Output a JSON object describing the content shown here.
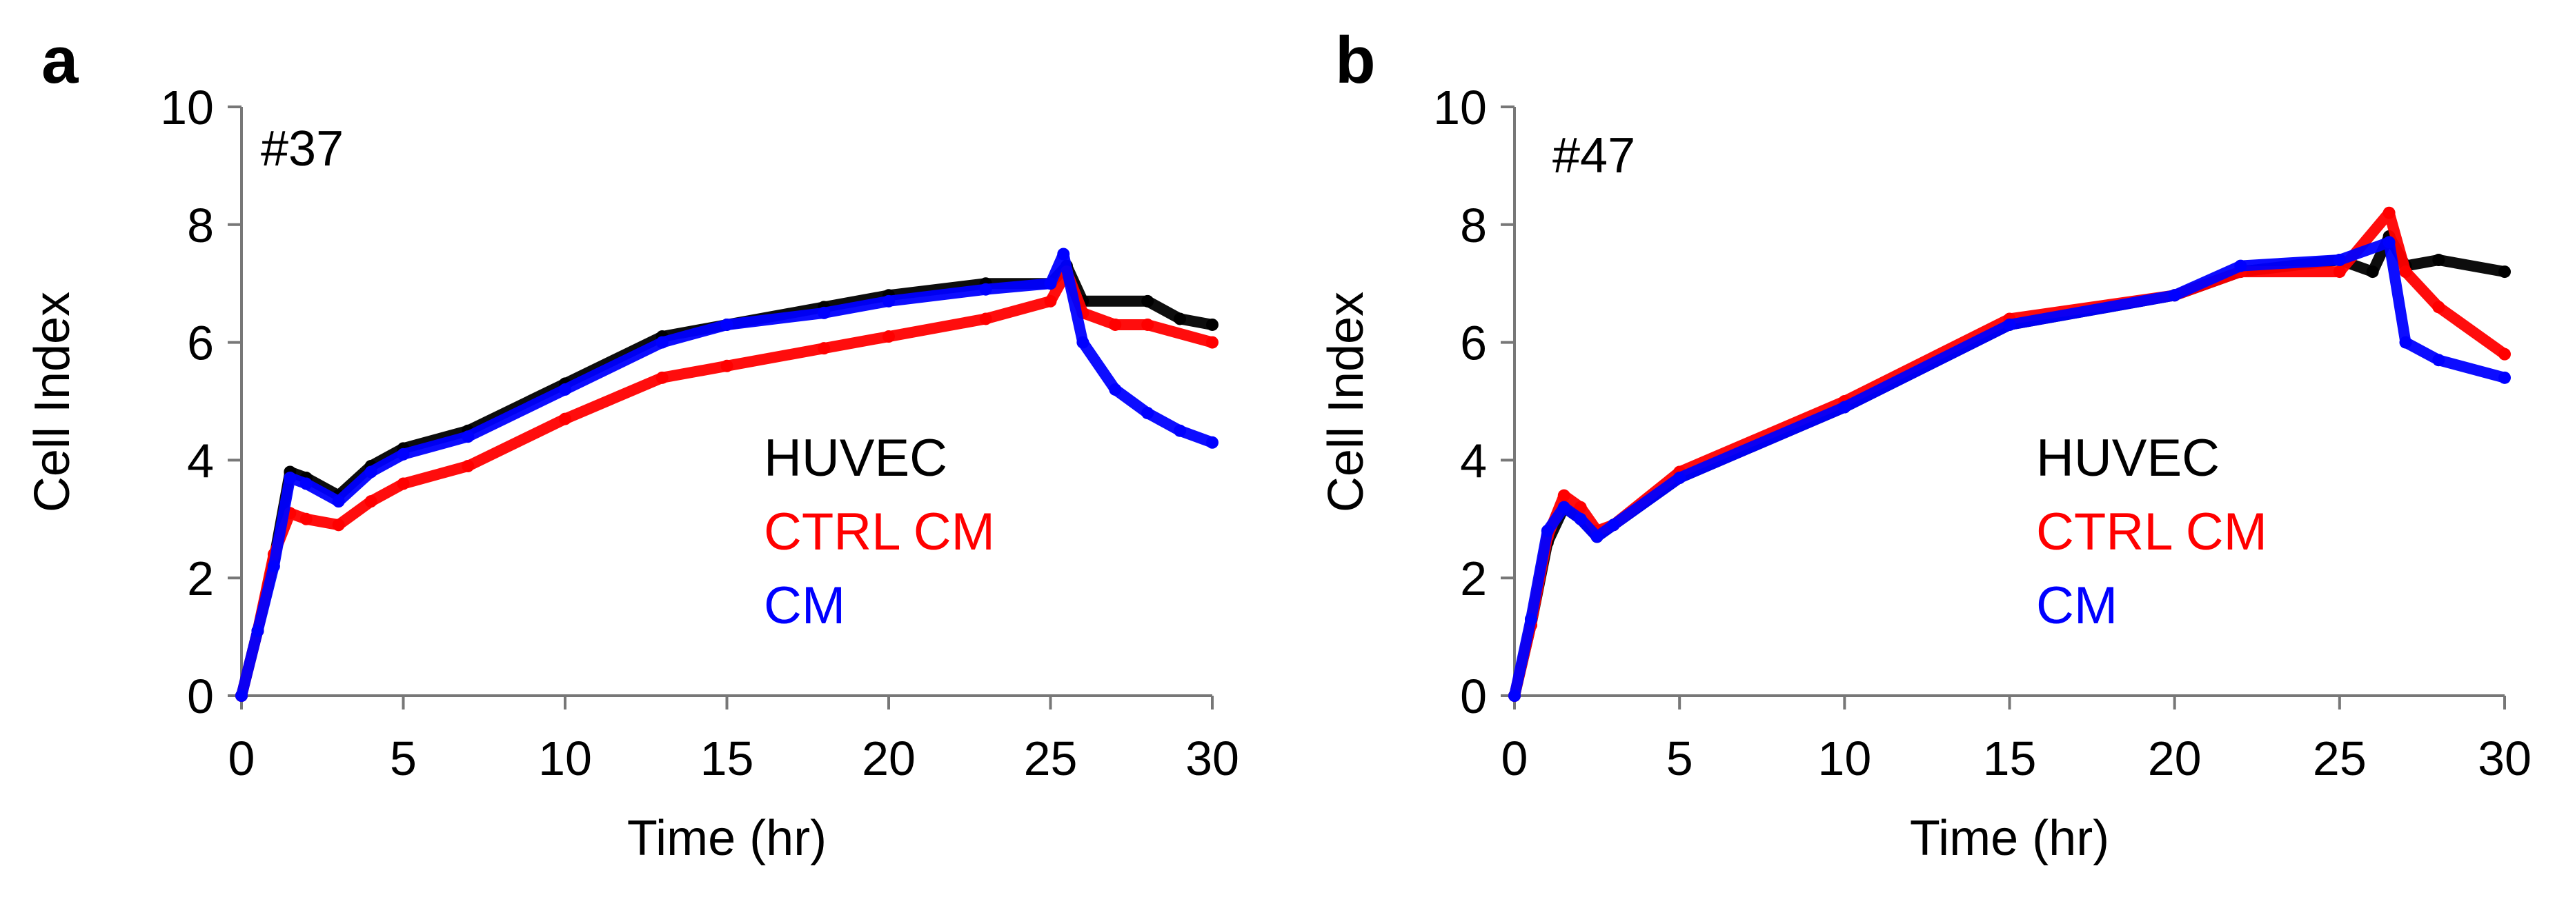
{
  "chart_data": [
    {
      "type": "line",
      "panel_label": "a",
      "annotation": "#37",
      "xlabel": "Time (hr)",
      "ylabel": "Cell Index",
      "xlim": [
        0,
        30
      ],
      "ylim": [
        0,
        10
      ],
      "xticks": [
        "0",
        "5",
        "10",
        "15",
        "20",
        "25",
        "30"
      ],
      "yticks": [
        "0",
        "2",
        "4",
        "6",
        "8",
        "10"
      ],
      "grid": false,
      "legend_position": "center-right",
      "series": [
        {
          "name": "HUVEC",
          "color": "#000000",
          "x": [
            0,
            0.5,
            1,
            1.5,
            2,
            3,
            4,
            5,
            7,
            10,
            13,
            15,
            18,
            20,
            23,
            25,
            25.5,
            26,
            28,
            29,
            30
          ],
          "y": [
            0,
            1.1,
            2.3,
            3.8,
            3.7,
            3.4,
            3.9,
            4.2,
            4.5,
            5.3,
            6.1,
            6.3,
            6.6,
            6.8,
            7.0,
            7.0,
            7.3,
            6.7,
            6.7,
            6.4,
            6.3
          ]
        },
        {
          "name": "CTRL CM",
          "color": "#ff0000",
          "x": [
            0,
            0.5,
            1,
            1.5,
            2,
            3,
            4,
            5,
            7,
            10,
            13,
            15,
            18,
            20,
            23,
            25,
            25.5,
            26,
            27,
            28,
            30
          ],
          "y": [
            0,
            1.1,
            2.4,
            3.1,
            3.0,
            2.9,
            3.3,
            3.6,
            3.9,
            4.7,
            5.4,
            5.6,
            5.9,
            6.1,
            6.4,
            6.7,
            7.2,
            6.5,
            6.3,
            6.3,
            6.0
          ]
        },
        {
          "name": "CM",
          "color": "#0000ff",
          "x": [
            0,
            0.5,
            1,
            1.5,
            2,
            3,
            4,
            5,
            7,
            10,
            13,
            15,
            18,
            20,
            23,
            25,
            25.4,
            26,
            27,
            28,
            29,
            30
          ],
          "y": [
            0,
            1.1,
            2.2,
            3.7,
            3.6,
            3.3,
            3.8,
            4.1,
            4.4,
            5.2,
            6.0,
            6.3,
            6.5,
            6.7,
            6.9,
            7.0,
            7.5,
            6.0,
            5.2,
            4.8,
            4.5,
            4.3
          ]
        }
      ]
    },
    {
      "type": "line",
      "panel_label": "b",
      "annotation": "#47",
      "xlabel": "Time (hr)",
      "ylabel": "Cell Index",
      "xlim": [
        0,
        30
      ],
      "ylim": [
        0,
        10
      ],
      "xticks": [
        "0",
        "5",
        "10",
        "15",
        "20",
        "25",
        "30"
      ],
      "yticks": [
        "0",
        "2",
        "4",
        "6",
        "8",
        "10"
      ],
      "grid": false,
      "legend_position": "center-right",
      "series": [
        {
          "name": "HUVEC",
          "color": "#000000",
          "x": [
            0,
            0.5,
            1,
            1.5,
            2,
            2.5,
            3,
            5,
            10,
            15,
            20,
            22,
            25,
            26,
            26.5,
            27,
            28,
            30
          ],
          "y": [
            0,
            1.2,
            2.6,
            3.2,
            3.0,
            2.7,
            2.9,
            3.7,
            4.9,
            6.3,
            6.8,
            7.2,
            7.4,
            7.2,
            7.8,
            7.3,
            7.4,
            7.2
          ]
        },
        {
          "name": "CTRL CM",
          "color": "#ff0000",
          "x": [
            0,
            0.5,
            1,
            1.5,
            2,
            2.5,
            3,
            5,
            10,
            15,
            20,
            22,
            25,
            26.5,
            27,
            28,
            30
          ],
          "y": [
            0,
            1.2,
            2.7,
            3.4,
            3.2,
            2.8,
            2.9,
            3.8,
            5.0,
            6.4,
            6.8,
            7.2,
            7.2,
            8.2,
            7.2,
            6.6,
            5.8
          ]
        },
        {
          "name": "CM",
          "color": "#0000ff",
          "x": [
            0,
            0.5,
            1,
            1.5,
            2,
            2.5,
            3,
            5,
            10,
            15,
            20,
            22,
            25,
            26.5,
            27,
            28,
            30
          ],
          "y": [
            0,
            1.3,
            2.8,
            3.2,
            3.0,
            2.7,
            2.9,
            3.7,
            4.9,
            6.3,
            6.8,
            7.3,
            7.4,
            7.7,
            6.0,
            5.7,
            5.4
          ]
        }
      ]
    }
  ]
}
